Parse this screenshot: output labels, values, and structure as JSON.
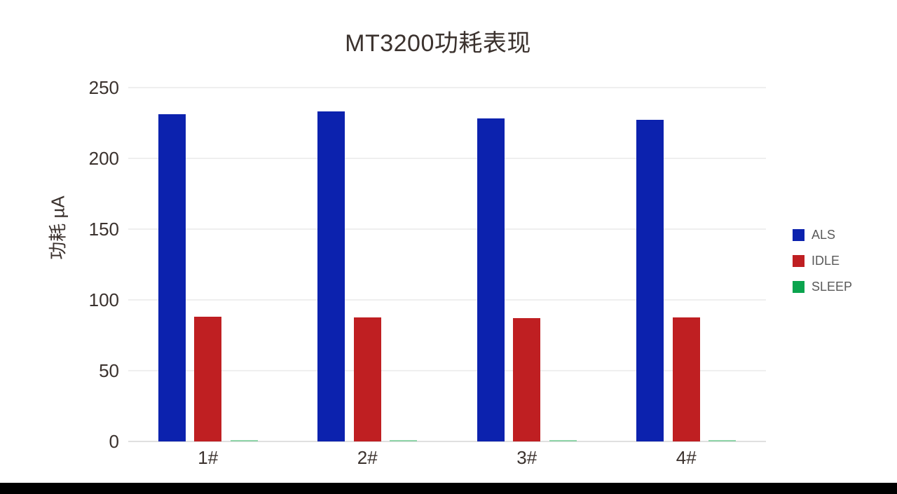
{
  "page": {
    "background": "#ffffff",
    "bottom_bar_color": "#000000"
  },
  "chart_data": {
    "type": "bar",
    "title": "MT3200功耗表现",
    "xlabel": "",
    "ylabel": "功耗 µA",
    "categories": [
      "1#",
      "2#",
      "3#",
      "4#"
    ],
    "series": [
      {
        "name": "ALS",
        "color": "#0c22ae",
        "values": [
          231,
          233,
          228,
          227
        ]
      },
      {
        "name": "IDLE",
        "color": "#bf1f22",
        "values": [
          88,
          87.5,
          87,
          87.5
        ]
      },
      {
        "name": "SLEEP",
        "color": "#0aa44e",
        "bar_color": "#8fd5a9",
        "values": [
          1,
          1,
          1,
          1
        ]
      }
    ],
    "ylim": [
      0,
      250
    ],
    "yticks": [
      0,
      50,
      100,
      150,
      200,
      250
    ],
    "grid": true,
    "legend_position": "right",
    "text_color": "#3b322e",
    "legend_text_color": "#595959",
    "gridline_color": "#efefef"
  }
}
